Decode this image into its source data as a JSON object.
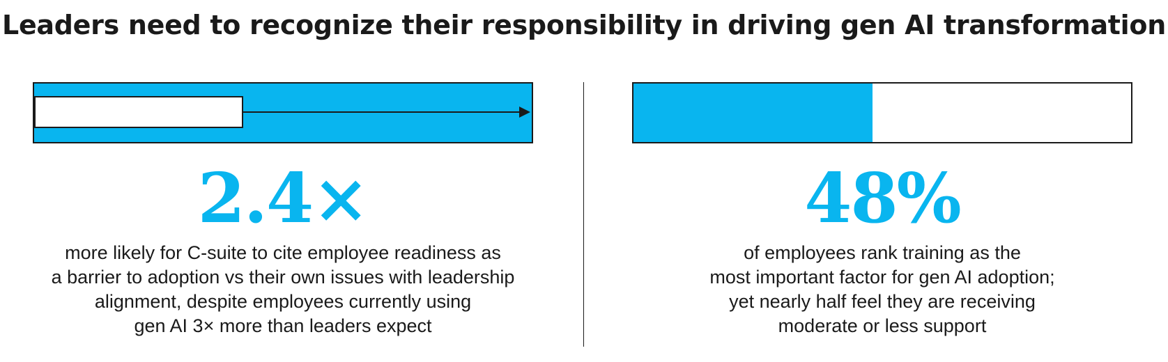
{
  "title": "Leaders need to recognize their responsibility in driving gen AI transformation",
  "colors": {
    "accent": "#09b5ef",
    "text": "#1a1a1a",
    "background": "#ffffff"
  },
  "left": {
    "stat": "2.4×",
    "ratio_indicator": {
      "value": 2.4,
      "baseline": 1
    },
    "description": [
      "more likely for C-suite to cite employee readiness as",
      "a barrier to adoption vs their own issues with leadership",
      "alignment, despite employees currently using",
      "gen AI 3× more than leaders expect"
    ]
  },
  "right": {
    "stat": "48%",
    "progress_fraction": 0.48,
    "description": [
      "of employees rank training as the",
      "most important factor for gen AI adoption;",
      "yet nearly half feel they are receiving",
      "moderate or less support"
    ]
  }
}
